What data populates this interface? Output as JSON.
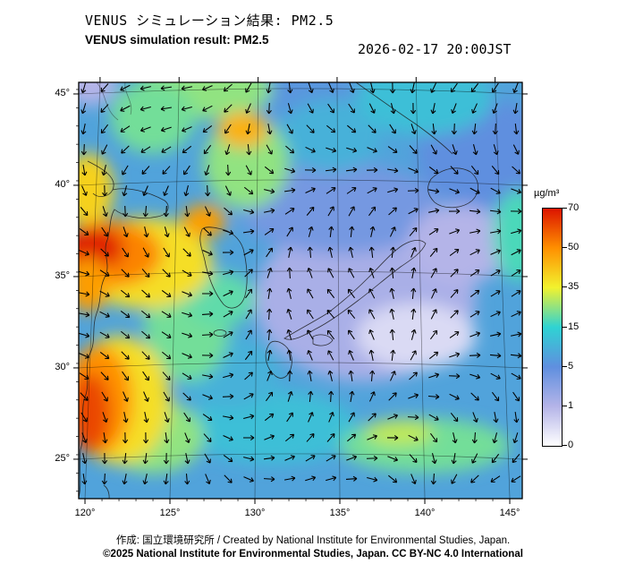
{
  "header": {
    "title_jp": "VENUS シミュレーション結果: PM2.5",
    "title_en": "VENUS simulation result: PM2.5",
    "timestamp": "2026-02-17 20:00JST"
  },
  "axes": {
    "lat_labels": [
      "45°",
      "40°",
      "35°",
      "30°",
      "25°"
    ],
    "lat_values": [
      45,
      40,
      35,
      30,
      25
    ],
    "lon_labels": [
      "120°",
      "125°",
      "130°",
      "135°",
      "140°",
      "145°"
    ],
    "lon_values": [
      120,
      125,
      130,
      135,
      140,
      145
    ]
  },
  "colorbar": {
    "unit": "µg/m³",
    "tick_values": [
      70,
      50,
      35,
      15,
      5,
      1,
      0
    ]
  },
  "footer": {
    "credit": "作成: 国立環境研究所 / Created by National Institute for Environmental Studies, Japan.",
    "license": "©2025 National Institute for Environmental Studies, Japan. CC BY-NC 4.0 International"
  },
  "chart_data": {
    "type": "heatmap",
    "title": "VENUS simulation result: PM2.5",
    "valid_time": "2026-02-17 20:00JST",
    "unit": "µg/m³",
    "lon_range": [
      119.6,
      145.7
    ],
    "lat_range": [
      22.6,
      45.7
    ],
    "legend_position": "right",
    "overlay": "wind vector arrows",
    "scale": {
      "values": [
        0,
        1,
        5,
        15,
        35,
        50,
        70
      ],
      "colors": [
        "#ffffff",
        "#b4b4e8",
        "#5f8fdf",
        "#2fd3d3",
        "#f2f22e",
        "#ff9000",
        "#dc1400"
      ]
    },
    "approx_grid": {
      "note": "PM2.5 values estimated from map colors, µg/m³",
      "lons": [
        120,
        125,
        130,
        135,
        140,
        145
      ],
      "lats": [
        45,
        40,
        35,
        30,
        25
      ],
      "values_ug_m3": [
        [
          4,
          20,
          25,
          12,
          10,
          15
        ],
        [
          40,
          20,
          25,
          5,
          3,
          5
        ],
        [
          65,
          45,
          20,
          1,
          1,
          3
        ],
        [
          50,
          18,
          15,
          4,
          2,
          4
        ],
        [
          55,
          20,
          10,
          15,
          25,
          18
        ]
      ]
    },
    "base_value": 8,
    "field_blobs": [
      {
        "lon": 136.5,
        "lat": 33.5,
        "rx": 6.5,
        "ry": 4.5,
        "v": 1.5
      },
      {
        "lon": 135.0,
        "lat": 38.5,
        "rx": 6.0,
        "ry": 2.5,
        "v": 4
      },
      {
        "lon": 143.5,
        "lat": 41.5,
        "rx": 4.0,
        "ry": 3.0,
        "v": 5
      },
      {
        "lon": 133.0,
        "lat": 45.0,
        "rx": 3.0,
        "ry": 1.5,
        "v": 6
      },
      {
        "lon": 139.5,
        "lat": 31.5,
        "rx": 3.5,
        "ry": 1.8,
        "v": 0.5
      },
      {
        "lon": 142.0,
        "lat": 36.5,
        "rx": 3.0,
        "ry": 2.2,
        "v": 1.0
      },
      {
        "lon": 131.0,
        "lat": 26.5,
        "rx": 5.0,
        "ry": 2.0,
        "v": 12
      },
      {
        "lon": 128.5,
        "lat": 29.5,
        "rx": 3.0,
        "ry": 2.0,
        "v": 10
      },
      {
        "lon": 134.5,
        "lat": 42.5,
        "rx": 3.0,
        "ry": 2.0,
        "v": 10
      },
      {
        "lon": 140.0,
        "lat": 44.5,
        "rx": 4.0,
        "ry": 2.0,
        "v": 12
      },
      {
        "lon": 127.0,
        "lat": 45.0,
        "rx": 4.0,
        "ry": 1.6,
        "v": 25
      },
      {
        "lon": 124.0,
        "lat": 43.5,
        "rx": 2.5,
        "ry": 2.0,
        "v": 22
      },
      {
        "lon": 129.5,
        "lat": 41.0,
        "rx": 2.5,
        "ry": 2.5,
        "v": 25
      },
      {
        "lon": 126.0,
        "lat": 32.0,
        "rx": 2.5,
        "ry": 3.0,
        "v": 22
      },
      {
        "lon": 125.5,
        "lat": 34.5,
        "rx": 2.0,
        "ry": 1.5,
        "v": 20
      },
      {
        "lon": 128.0,
        "lat": 33.5,
        "rx": 2.0,
        "ry": 1.5,
        "v": 20
      },
      {
        "lon": 124.0,
        "lat": 26.0,
        "rx": 3.0,
        "ry": 2.0,
        "v": 25
      },
      {
        "lon": 140.0,
        "lat": 25.5,
        "rx": 5.0,
        "ry": 1.5,
        "v": 22
      },
      {
        "lon": 145.5,
        "lat": 37.0,
        "rx": 1.5,
        "ry": 2.5,
        "v": 18
      },
      {
        "lon": 120.2,
        "lat": 39.5,
        "rx": 1.5,
        "ry": 2.0,
        "v": 40
      },
      {
        "lon": 129.3,
        "lat": 42.8,
        "rx": 1.5,
        "ry": 1.0,
        "v": 45
      },
      {
        "lon": 123.5,
        "lat": 35.5,
        "rx": 4.0,
        "ry": 2.5,
        "v": 38
      },
      {
        "lon": 121.5,
        "lat": 36.0,
        "rx": 3.0,
        "ry": 1.8,
        "v": 52
      },
      {
        "lon": 120.5,
        "lat": 36.3,
        "rx": 1.8,
        "ry": 1.2,
        "v": 68
      },
      {
        "lon": 120.2,
        "lat": 34.3,
        "rx": 1.2,
        "ry": 1.5,
        "v": 48
      },
      {
        "lon": 127.0,
        "lat": 37.8,
        "rx": 1.3,
        "ry": 0.9,
        "v": 48
      },
      {
        "lon": 122.0,
        "lat": 28.0,
        "rx": 3.0,
        "ry": 3.5,
        "v": 38
      },
      {
        "lon": 120.8,
        "lat": 28.0,
        "rx": 2.0,
        "ry": 3.0,
        "v": 50
      },
      {
        "lon": 120.3,
        "lat": 27.3,
        "rx": 1.2,
        "ry": 2.2,
        "v": 62
      },
      {
        "lon": 138.5,
        "lat": 26.2,
        "rx": 2.0,
        "ry": 0.7,
        "v": 30
      },
      {
        "lon": 120.3,
        "lat": 45.3,
        "rx": 1.6,
        "ry": 1.2,
        "v": 1
      }
    ],
    "wind": {
      "spacing": 23,
      "length": 12,
      "a0": 20,
      "a1": 55,
      "f1": 60,
      "a2": 65,
      "f2": 78,
      "a3": 45,
      "f3": 140
    }
  }
}
